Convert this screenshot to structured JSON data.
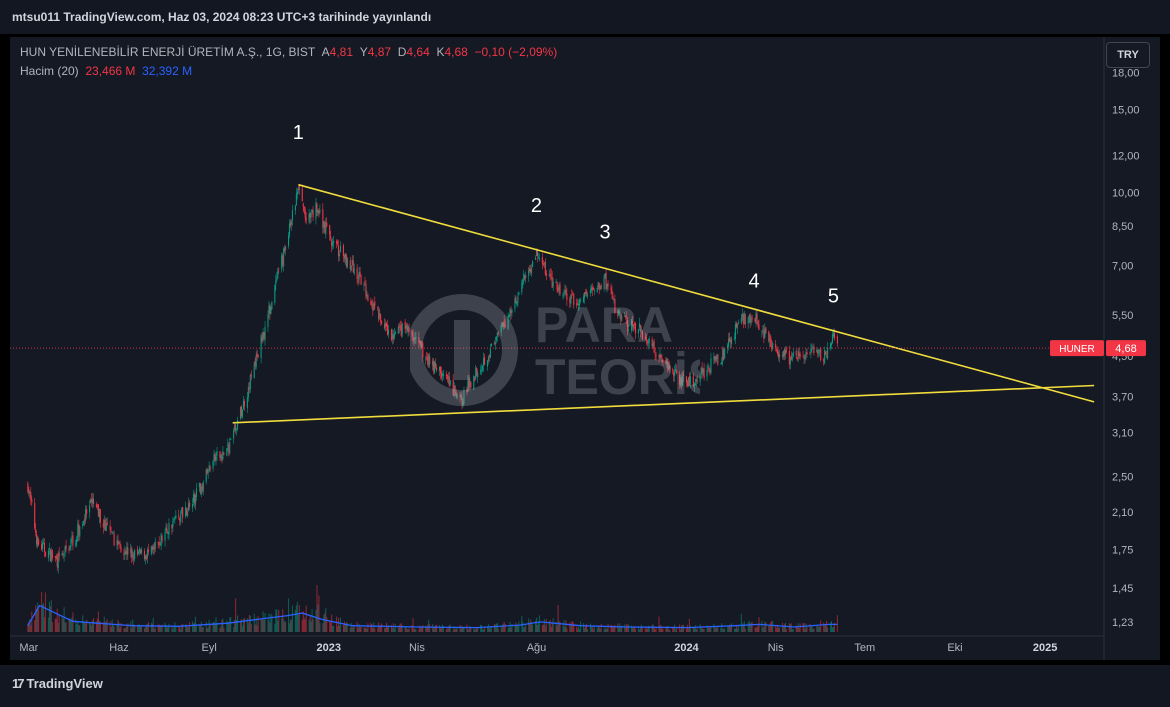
{
  "header": {
    "published": "mtsu011 TradingView.com, Haz 03, 2024 08:23 UTC+3 tarihinde yayınlandı"
  },
  "legend": {
    "symbol_line": "HUN YENİLENEBİLİR ENERJİ ÜRETİM A.Ş., 1G, BIST",
    "o_label": "A",
    "o_value": "4,81",
    "h_label": "Y",
    "h_value": "4,87",
    "l_label": "D",
    "l_value": "4,64",
    "c_label": "K",
    "c_value": "4,68",
    "change": "−0,10 (−2,09%)",
    "volume_label": "Hacim (20)",
    "volume_value": "23,466 M",
    "volume_ma": "32,392 M"
  },
  "currency_button": "TRY",
  "price_badge": {
    "ticker": "HUNER",
    "price": "4,68"
  },
  "watermark": {
    "line1": "PARA",
    "line2": "TEORİSİ"
  },
  "footer": {
    "logo_text": "TradingView",
    "logo_mark": "17"
  },
  "colors": {
    "up": "#089981",
    "down": "#f23645",
    "trendline": "#f0dc3c",
    "volume_ma": "#2962ff",
    "background": "#151924"
  },
  "chart_data": {
    "type": "candlestick",
    "y_scale": "log",
    "ylim": [
      1.17,
      21.5
    ],
    "xlim": [
      "2022-02-20",
      "2025-02-28"
    ],
    "y_ticks": [
      {
        "value": 18.0,
        "label": "18,00"
      },
      {
        "value": 15.0,
        "label": "15,00"
      },
      {
        "value": 12.0,
        "label": "12,00"
      },
      {
        "value": 10.0,
        "label": "10,00"
      },
      {
        "value": 8.5,
        "label": "8,50"
      },
      {
        "value": 7.0,
        "label": "7,00"
      },
      {
        "value": 5.5,
        "label": "5,50"
      },
      {
        "value": 4.5,
        "label": "4,50"
      },
      {
        "value": 3.7,
        "label": "3,70"
      },
      {
        "value": 3.1,
        "label": "3,10"
      },
      {
        "value": 2.5,
        "label": "2,50"
      },
      {
        "value": 2.1,
        "label": "2,10"
      },
      {
        "value": 1.75,
        "label": "1,75"
      },
      {
        "value": 1.45,
        "label": "1,45"
      },
      {
        "value": 1.23,
        "label": "1,23"
      }
    ],
    "x_ticks": [
      {
        "date": "2022-03-01",
        "label": "Mar",
        "bold": false
      },
      {
        "date": "2022-06-01",
        "label": "Haz",
        "bold": false
      },
      {
        "date": "2022-09-01",
        "label": "Eyl",
        "bold": false
      },
      {
        "date": "2023-01-01",
        "label": "2023",
        "bold": true
      },
      {
        "date": "2023-04-01",
        "label": "Nis",
        "bold": false
      },
      {
        "date": "2023-08-01",
        "label": "Ağu",
        "bold": false
      },
      {
        "date": "2024-01-01",
        "label": "2024",
        "bold": true
      },
      {
        "date": "2024-04-01",
        "label": "Nis",
        "bold": false
      },
      {
        "date": "2024-07-01",
        "label": "Tem",
        "bold": false
      },
      {
        "date": "2024-10-01",
        "label": "Eki",
        "bold": false
      },
      {
        "date": "2025-01-01",
        "label": "2025",
        "bold": true
      }
    ],
    "price_path": [
      [
        "2022-02-28",
        2.4
      ],
      [
        "2022-03-10",
        1.8
      ],
      [
        "2022-04-01",
        1.65
      ],
      [
        "2022-04-20",
        1.92
      ],
      [
        "2022-05-05",
        2.2
      ],
      [
        "2022-05-25",
        1.85
      ],
      [
        "2022-06-15",
        1.7
      ],
      [
        "2022-07-05",
        1.72
      ],
      [
        "2022-07-25",
        2.0
      ],
      [
        "2022-08-15",
        2.2
      ],
      [
        "2022-09-05",
        2.7
      ],
      [
        "2022-09-20",
        2.85
      ],
      [
        "2022-10-05",
        3.5
      ],
      [
        "2022-10-20",
        4.5
      ],
      [
        "2022-11-05",
        6.0
      ],
      [
        "2022-11-20",
        8.0
      ],
      [
        "2022-12-01",
        10.2
      ],
      [
        "2022-12-10",
        8.6
      ],
      [
        "2022-12-20",
        9.3
      ],
      [
        "2023-01-05",
        7.8
      ],
      [
        "2023-01-25",
        7.0
      ],
      [
        "2023-02-15",
        5.8
      ],
      [
        "2023-03-05",
        4.9
      ],
      [
        "2023-03-20",
        5.2
      ],
      [
        "2023-04-10",
        4.5
      ],
      [
        "2023-04-28",
        4.1
      ],
      [
        "2023-05-15",
        3.6
      ],
      [
        "2023-06-01",
        4.2
      ],
      [
        "2023-06-20",
        4.8
      ],
      [
        "2023-07-05",
        5.6
      ],
      [
        "2023-07-20",
        6.6
      ],
      [
        "2023-08-01",
        7.4
      ],
      [
        "2023-08-20",
        6.3
      ],
      [
        "2023-09-10",
        5.8
      ],
      [
        "2023-09-25",
        6.2
      ],
      [
        "2023-10-10",
        6.5
      ],
      [
        "2023-10-25",
        5.4
      ],
      [
        "2023-11-15",
        5.1
      ],
      [
        "2023-12-10",
        4.4
      ],
      [
        "2024-01-01",
        3.9
      ],
      [
        "2024-01-20",
        4.2
      ],
      [
        "2024-02-10",
        4.6
      ],
      [
        "2024-02-25",
        5.4
      ],
      [
        "2024-03-10",
        5.5
      ],
      [
        "2024-03-25",
        4.8
      ],
      [
        "2024-04-15",
        4.45
      ],
      [
        "2024-05-05",
        4.55
      ],
      [
        "2024-05-20",
        4.5
      ],
      [
        "2024-05-30",
        4.9
      ],
      [
        "2024-06-03",
        4.68
      ]
    ],
    "volume_ma": [
      [
        "2022-02-28",
        0.1
      ],
      [
        "2022-03-12",
        0.42
      ],
      [
        "2022-03-28",
        0.3
      ],
      [
        "2022-04-15",
        0.17
      ],
      [
        "2022-05-10",
        0.14
      ],
      [
        "2022-06-15",
        0.1
      ],
      [
        "2022-08-01",
        0.09
      ],
      [
        "2022-09-20",
        0.14
      ],
      [
        "2022-10-20",
        0.2
      ],
      [
        "2022-11-20",
        0.26
      ],
      [
        "2022-12-05",
        0.3
      ],
      [
        "2022-12-25",
        0.2
      ],
      [
        "2023-01-25",
        0.1
      ],
      [
        "2023-04-01",
        0.08
      ],
      [
        "2023-06-01",
        0.07
      ],
      [
        "2023-07-15",
        0.11
      ],
      [
        "2023-08-05",
        0.16
      ],
      [
        "2023-09-15",
        0.1
      ],
      [
        "2023-11-01",
        0.08
      ],
      [
        "2024-01-01",
        0.07
      ],
      [
        "2024-02-20",
        0.1
      ],
      [
        "2024-03-15",
        0.12
      ],
      [
        "2024-04-20",
        0.08
      ],
      [
        "2024-05-25",
        0.12
      ],
      [
        "2024-06-03",
        0.12
      ]
    ],
    "trendlines": [
      {
        "name": "resistance",
        "from": [
          "2022-12-01",
          10.4
        ],
        "to": [
          "2025-02-20",
          3.6
        ]
      },
      {
        "name": "support",
        "from": [
          "2022-09-25",
          3.25
        ],
        "to": [
          "2025-02-20",
          3.9
        ]
      }
    ],
    "wave_labels": [
      {
        "text": "1",
        "date": "2022-12-01",
        "price": 13.0
      },
      {
        "text": "2",
        "date": "2023-08-01",
        "price": 9.1
      },
      {
        "text": "3",
        "date": "2023-10-10",
        "price": 8.0
      },
      {
        "text": "4",
        "date": "2024-03-10",
        "price": 6.3
      },
      {
        "text": "5",
        "date": "2024-05-30",
        "price": 5.85
      }
    ],
    "current_price": 4.68
  }
}
